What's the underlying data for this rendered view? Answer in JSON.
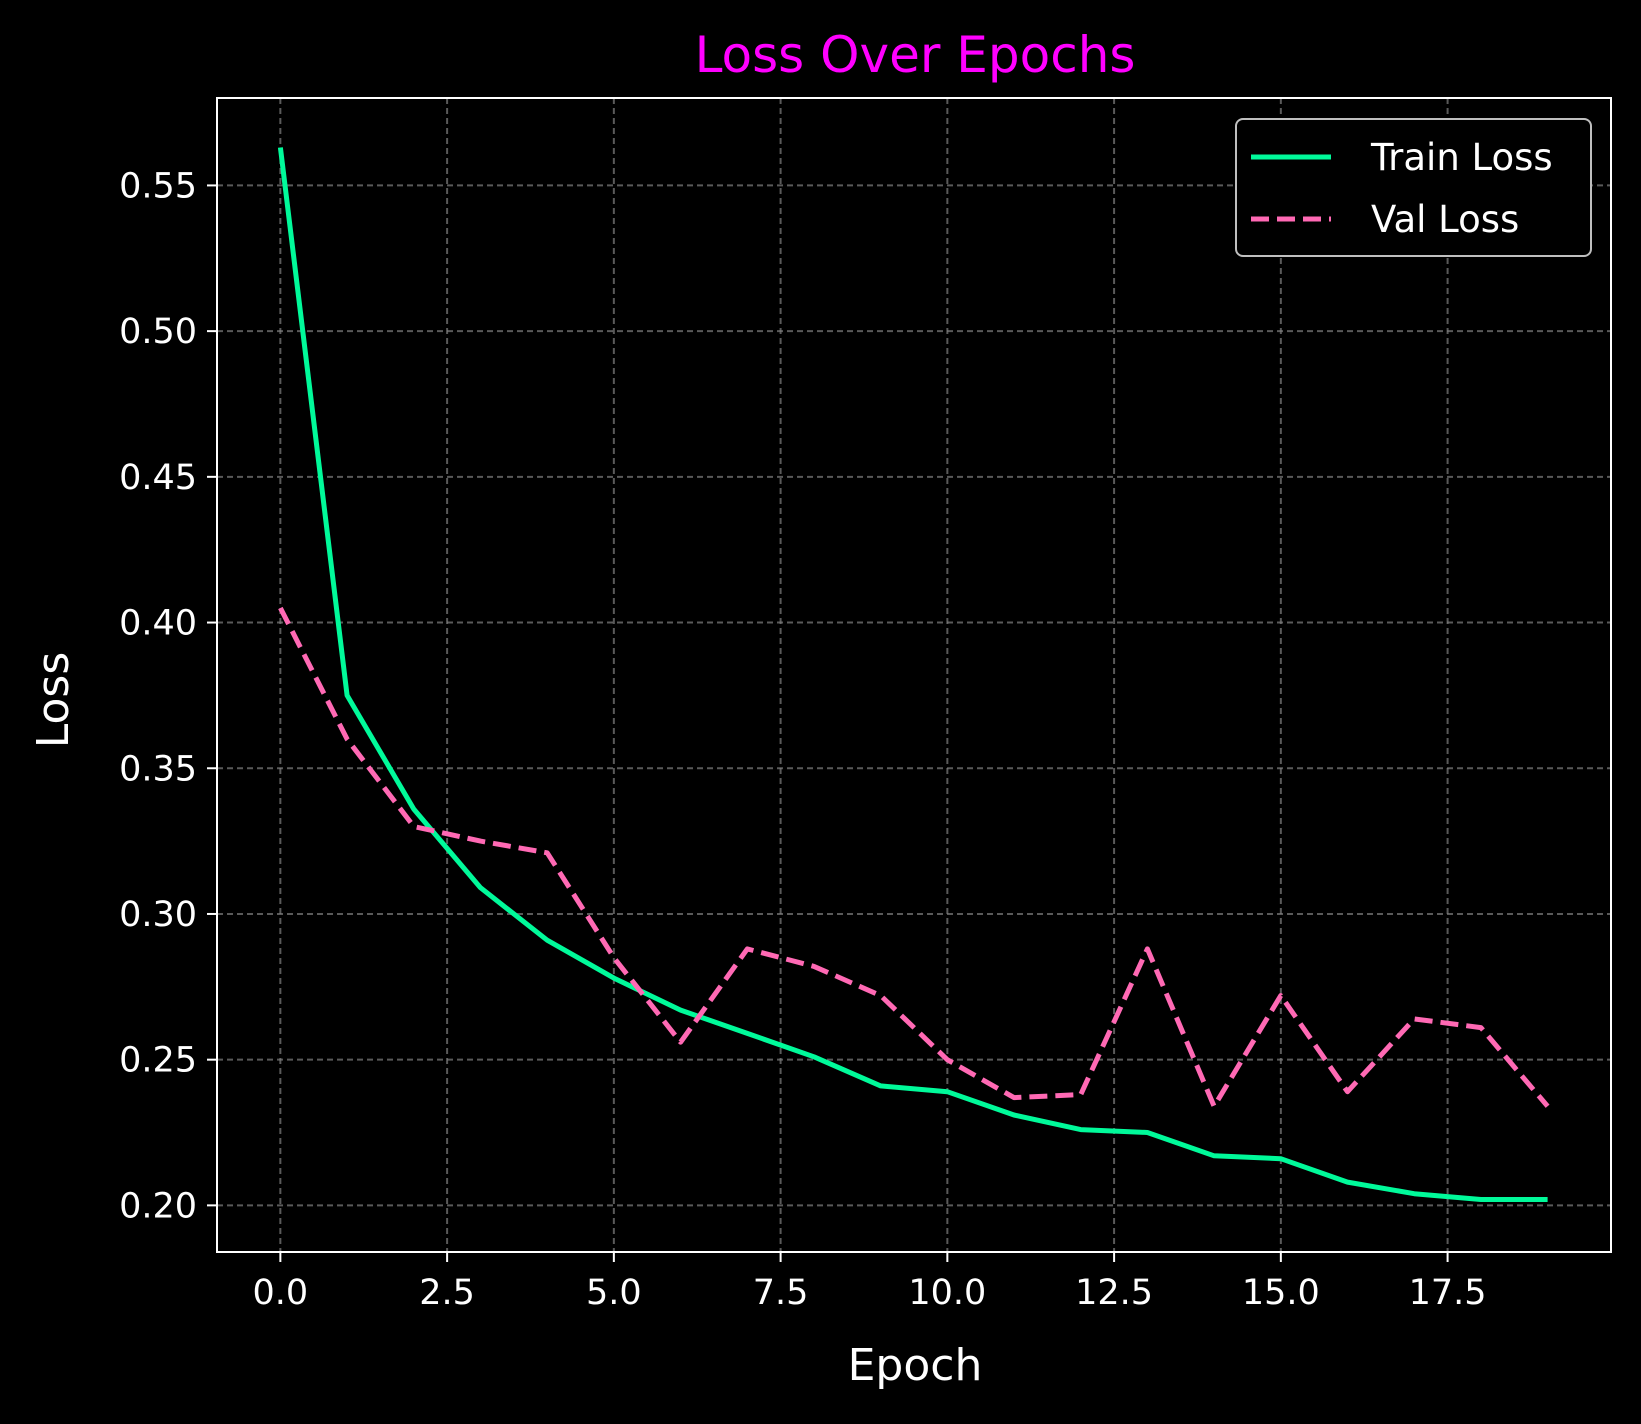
{
  "chart_data": {
    "type": "line",
    "title": "Loss Over Epochs",
    "xlabel": "Epoch",
    "ylabel": "Loss",
    "xlim": [
      -0.95,
      19.95
    ],
    "ylim": [
      0.184,
      0.58
    ],
    "xticks": [
      0,
      2.5,
      5,
      7.5,
      10,
      12.5,
      15,
      17.5
    ],
    "xtick_labels": [
      "0.0",
      "2.5",
      "5.0",
      "7.5",
      "10.0",
      "12.5",
      "15.0",
      "17.5"
    ],
    "yticks": [
      0.2,
      0.25,
      0.3,
      0.35,
      0.4,
      0.45,
      0.5,
      0.55
    ],
    "ytick_labels": [
      "0.20",
      "0.25",
      "0.30",
      "0.35",
      "0.40",
      "0.45",
      "0.50",
      "0.55"
    ],
    "grid": true,
    "legend_position": "top-right",
    "x": [
      0,
      1,
      2,
      3,
      4,
      5,
      6,
      7,
      8,
      9,
      10,
      11,
      12,
      13,
      14,
      15,
      16,
      17,
      18,
      19
    ],
    "series": [
      {
        "name": "Train Loss",
        "style": "solid",
        "color": "#00fa9a",
        "values": [
          0.563,
          0.375,
          0.336,
          0.309,
          0.291,
          0.278,
          0.267,
          0.259,
          0.251,
          0.241,
          0.239,
          0.231,
          0.226,
          0.225,
          0.217,
          0.216,
          0.208,
          0.204,
          0.202,
          0.202
        ]
      },
      {
        "name": "Val Loss",
        "style": "dashed",
        "color": "#ff69b4",
        "values": [
          0.405,
          0.36,
          0.33,
          0.325,
          0.321,
          0.285,
          0.256,
          0.288,
          0.282,
          0.272,
          0.25,
          0.237,
          0.238,
          0.288,
          0.234,
          0.272,
          0.239,
          0.264,
          0.261,
          0.234
        ]
      }
    ],
    "colors": {
      "background": "#000000",
      "title": "#ff00ff",
      "text": "#ffffff",
      "grid": "#808080",
      "legend_border": "#bfbfbf"
    }
  }
}
